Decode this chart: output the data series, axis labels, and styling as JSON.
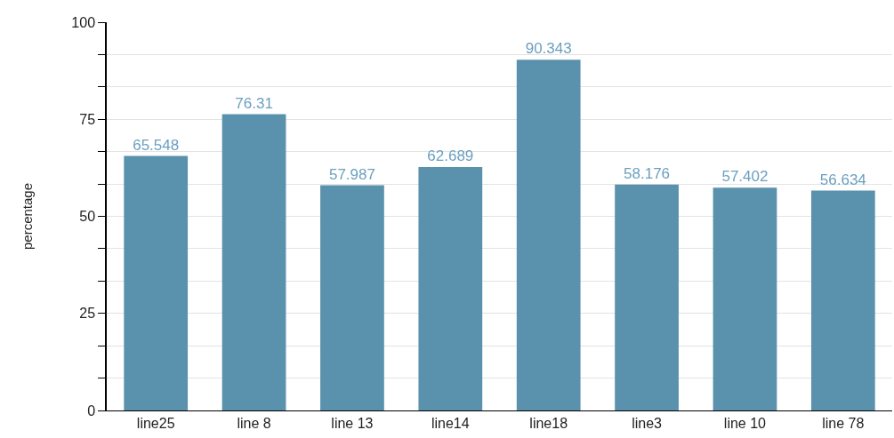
{
  "chart_data": {
    "type": "bar",
    "ylabel": "percentage",
    "categories": [
      "line25",
      "line 8",
      "line 13",
      "line14",
      "line18",
      "line3",
      "line 10",
      "line 78"
    ],
    "values": [
      65.548,
      76.31,
      57.987,
      62.689,
      90.343,
      58.176,
      57.402,
      56.634
    ],
    "color": "#5a91ad",
    "data_labels": true,
    "ylim": [
      0,
      100
    ],
    "yticks": [
      0,
      {
        "value": 8.33,
        "label": null
      },
      {
        "value": 16.67,
        "label": null
      },
      25,
      {
        "value": 33.33,
        "label": null
      },
      {
        "value": 41.67,
        "label": null
      },
      50,
      {
        "value": 58.33,
        "label": null
      },
      {
        "value": 66.67,
        "label": null
      },
      75,
      {
        "value": 83.33,
        "label": null
      },
      {
        "value": 91.67,
        "label": null
      },
      100
    ],
    "grid": "y",
    "legend": false
  }
}
